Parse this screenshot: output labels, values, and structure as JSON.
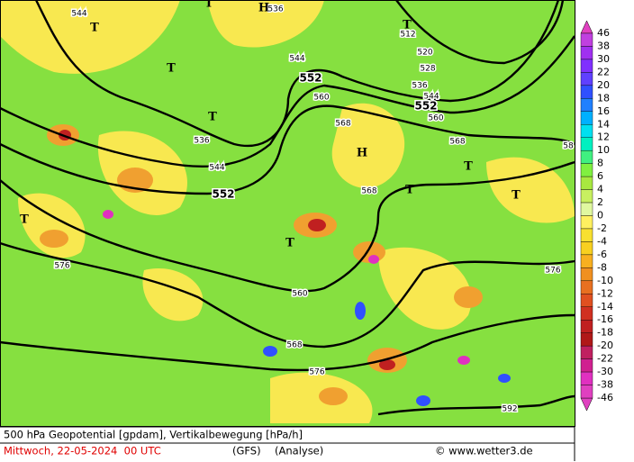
{
  "map": {
    "footer": {
      "title": "500 hPa Geopotential [gpdam], Vertikalbewegung [hPa/h]",
      "date": "Mittwoch, 22-05-2024  00 UTC",
      "model": "(GFS)",
      "run": "(Analyse)",
      "copyright": "© www.wetter3.de"
    },
    "legend": {
      "labels": [
        "46",
        "38",
        "30",
        "22",
        "20",
        "18",
        "16",
        "14",
        "12",
        "10",
        "8",
        "6",
        "4",
        "2",
        "0",
        "-2",
        "-4",
        "-6",
        "-8",
        "-10",
        "-12",
        "-14",
        "-16",
        "-18",
        "-20",
        "-22",
        "-30",
        "-38",
        "-46"
      ]
    },
    "contour_labels": [
      "544",
      "536",
      "512",
      "520",
      "528",
      "536",
      "544",
      "552",
      "560",
      "552",
      "544",
      "560",
      "568",
      "568",
      "536",
      "544",
      "552",
      "568",
      "576",
      "560",
      "568",
      "576",
      "576",
      "592",
      "58"
    ],
    "pressure_centers": [
      "H",
      "T",
      "T",
      "T",
      "T",
      "H",
      "T",
      "T",
      "T",
      "T",
      "T",
      "T"
    ]
  }
}
